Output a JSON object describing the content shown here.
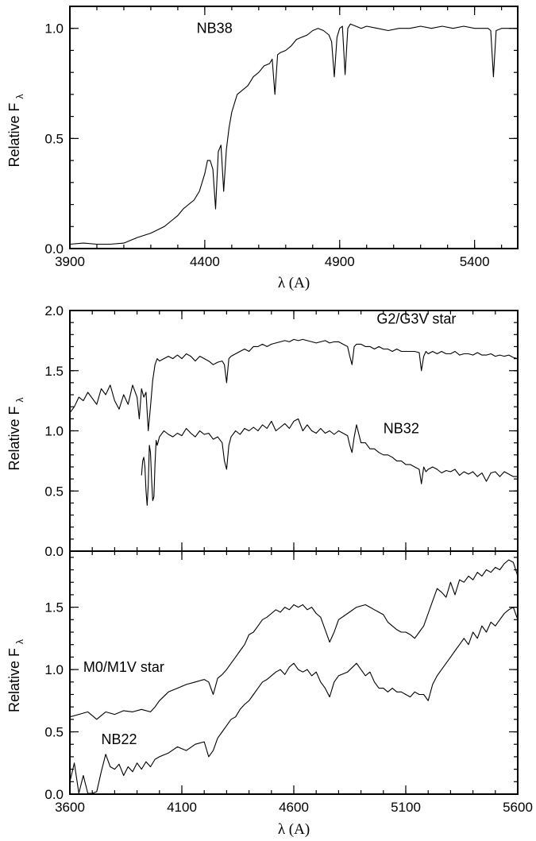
{
  "chart_data": [
    {
      "type": "line",
      "title": "",
      "xlabel": "λ (A)",
      "ylabel": "Relative F",
      "ylabel_subscript": "λ",
      "xlim": [
        3900,
        5560
      ],
      "ylim": [
        0.0,
        1.1
      ],
      "x_ticks": [
        "3900",
        "4400",
        "4900",
        "5400"
      ],
      "y_ticks": [
        "0.0",
        "0.5",
        "1.0"
      ],
      "annotations": [
        {
          "text": "NB38",
          "x": 4370,
          "y": 0.98
        }
      ],
      "series": [
        {
          "name": "NB38",
          "x": [
            3900,
            3950,
            4000,
            4050,
            4100,
            4150,
            4200,
            4250,
            4280,
            4300,
            4320,
            4340,
            4360,
            4380,
            4400,
            4410,
            4420,
            4430,
            4440,
            4450,
            4460,
            4470,
            4480,
            4490,
            4500,
            4510,
            4520,
            4540,
            4560,
            4580,
            4600,
            4620,
            4640,
            4650,
            4660,
            4670,
            4680,
            4700,
            4720,
            4740,
            4760,
            4780,
            4800,
            4820,
            4840,
            4860,
            4870,
            4880,
            4890,
            4900,
            4910,
            4920,
            4930,
            4940,
            4960,
            4980,
            5000,
            5040,
            5080,
            5120,
            5160,
            5200,
            5240,
            5280,
            5320,
            5360,
            5400,
            5430,
            5450,
            5460,
            5470,
            5480,
            5500,
            5520,
            5540,
            5560
          ],
          "values": [
            0.02,
            0.025,
            0.02,
            0.02,
            0.025,
            0.05,
            0.07,
            0.1,
            0.13,
            0.15,
            0.18,
            0.2,
            0.22,
            0.26,
            0.34,
            0.4,
            0.4,
            0.36,
            0.18,
            0.44,
            0.47,
            0.26,
            0.45,
            0.55,
            0.62,
            0.66,
            0.7,
            0.72,
            0.74,
            0.78,
            0.8,
            0.83,
            0.84,
            0.86,
            0.7,
            0.88,
            0.89,
            0.9,
            0.92,
            0.95,
            0.96,
            0.97,
            0.99,
            1.0,
            0.99,
            0.97,
            0.94,
            0.78,
            0.96,
            1.0,
            1.01,
            0.79,
            1.0,
            1.02,
            1.01,
            1.0,
            1.01,
            1.0,
            0.99,
            1.0,
            1.0,
            1.01,
            1.0,
            1.01,
            1.0,
            1.01,
            1.0,
            1.0,
            1.0,
            0.99,
            0.78,
            0.99,
            1.0,
            1.0,
            1.0,
            1.0
          ]
        }
      ]
    },
    {
      "type": "line",
      "title": "",
      "xlabel": "",
      "ylabel": "Relative F",
      "ylabel_subscript": "λ",
      "xlim": [
        3600,
        5600
      ],
      "ylim": [
        0.0,
        2.0
      ],
      "x_ticks": [],
      "y_ticks": [
        "0.0",
        "0.5",
        "1.0",
        "1.5",
        "2.0"
      ],
      "annotations": [
        {
          "text": "G2/G3V star",
          "x": 4970,
          "y": 1.89
        },
        {
          "text": "NB32",
          "x": 5000,
          "y": 0.98
        }
      ],
      "series": [
        {
          "name": "G2/G3V star",
          "x": [
            3600,
            3620,
            3640,
            3660,
            3680,
            3700,
            3720,
            3740,
            3760,
            3780,
            3800,
            3820,
            3840,
            3860,
            3880,
            3900,
            3910,
            3920,
            3930,
            3940,
            3950,
            3960,
            3970,
            3980,
            3990,
            4000,
            4020,
            4040,
            4060,
            4080,
            4100,
            4120,
            4140,
            4160,
            4180,
            4200,
            4220,
            4240,
            4260,
            4280,
            4290,
            4300,
            4310,
            4320,
            4340,
            4360,
            4380,
            4400,
            4420,
            4440,
            4460,
            4480,
            4500,
            4520,
            4540,
            4560,
            4580,
            4600,
            4620,
            4640,
            4660,
            4680,
            4700,
            4720,
            4740,
            4760,
            4780,
            4800,
            4820,
            4840,
            4850,
            4860,
            4870,
            4880,
            4900,
            4920,
            4940,
            4960,
            4980,
            5000,
            5020,
            5040,
            5060,
            5080,
            5100,
            5120,
            5140,
            5160,
            5170,
            5180,
            5190,
            5200,
            5220,
            5240,
            5260,
            5280,
            5300,
            5320,
            5340,
            5360,
            5380,
            5400,
            5420,
            5440,
            5460,
            5480,
            5500,
            5520,
            5540,
            5560,
            5580,
            5600
          ],
          "values": [
            1.15,
            1.2,
            1.28,
            1.25,
            1.32,
            1.27,
            1.22,
            1.35,
            1.3,
            1.38,
            1.25,
            1.18,
            1.3,
            1.22,
            1.38,
            1.28,
            1.1,
            1.35,
            1.28,
            1.32,
            1.0,
            1.2,
            1.42,
            1.55,
            1.6,
            1.58,
            1.6,
            1.62,
            1.6,
            1.63,
            1.6,
            1.64,
            1.62,
            1.58,
            1.62,
            1.6,
            1.58,
            1.55,
            1.57,
            1.58,
            1.55,
            1.4,
            1.6,
            1.62,
            1.64,
            1.66,
            1.68,
            1.66,
            1.7,
            1.7,
            1.72,
            1.7,
            1.72,
            1.73,
            1.74,
            1.75,
            1.74,
            1.76,
            1.75,
            1.76,
            1.75,
            1.74,
            1.73,
            1.74,
            1.75,
            1.73,
            1.74,
            1.74,
            1.72,
            1.7,
            1.62,
            1.55,
            1.7,
            1.72,
            1.72,
            1.7,
            1.7,
            1.68,
            1.7,
            1.68,
            1.68,
            1.66,
            1.68,
            1.66,
            1.66,
            1.66,
            1.66,
            1.65,
            1.5,
            1.62,
            1.66,
            1.64,
            1.66,
            1.64,
            1.66,
            1.64,
            1.64,
            1.66,
            1.63,
            1.64,
            1.64,
            1.63,
            1.65,
            1.63,
            1.63,
            1.64,
            1.62,
            1.63,
            1.62,
            1.63,
            1.61,
            1.6
          ]
        },
        {
          "name": "NB32",
          "x": [
            3920,
            3925,
            3930,
            3935,
            3940,
            3945,
            3950,
            3955,
            3960,
            3965,
            3970,
            3975,
            3980,
            3985,
            3990,
            4000,
            4020,
            4040,
            4060,
            4080,
            4100,
            4120,
            4140,
            4160,
            4180,
            4200,
            4220,
            4240,
            4260,
            4280,
            4290,
            4300,
            4310,
            4320,
            4340,
            4360,
            4380,
            4400,
            4420,
            4440,
            4460,
            4480,
            4500,
            4520,
            4540,
            4560,
            4580,
            4600,
            4620,
            4640,
            4660,
            4680,
            4700,
            4720,
            4740,
            4760,
            4780,
            4800,
            4820,
            4840,
            4850,
            4860,
            4870,
            4880,
            4900,
            4920,
            4940,
            4960,
            4980,
            5000,
            5020,
            5040,
            5060,
            5080,
            5100,
            5120,
            5140,
            5160,
            5170,
            5180,
            5190,
            5200,
            5220,
            5240,
            5260,
            5280,
            5300,
            5320,
            5340,
            5360,
            5380,
            5400,
            5420,
            5440,
            5460,
            5480,
            5500,
            5520,
            5540,
            5560,
            5580,
            5600
          ],
          "values": [
            0.63,
            0.75,
            0.78,
            0.7,
            0.5,
            0.38,
            0.55,
            0.88,
            0.82,
            0.6,
            0.42,
            0.45,
            0.72,
            0.92,
            0.88,
            0.95,
            1.0,
            0.97,
            0.95,
            0.98,
            0.96,
            1.02,
            0.98,
            0.95,
            1.0,
            0.97,
            0.98,
            0.93,
            0.95,
            0.9,
            0.75,
            0.68,
            0.88,
            0.95,
            1.0,
            0.97,
            1.02,
            1.0,
            1.03,
            1.0,
            1.05,
            1.02,
            1.08,
            1.0,
            1.03,
            1.06,
            1.02,
            1.08,
            1.1,
            1.0,
            1.05,
            1.0,
            0.98,
            1.02,
            0.98,
            1.0,
            0.97,
            1.0,
            0.98,
            0.96,
            0.88,
            0.82,
            0.95,
            1.05,
            0.9,
            0.9,
            0.85,
            0.85,
            0.82,
            0.8,
            0.8,
            0.78,
            0.75,
            0.75,
            0.72,
            0.72,
            0.7,
            0.68,
            0.56,
            0.7,
            0.66,
            0.68,
            0.7,
            0.68,
            0.65,
            0.67,
            0.66,
            0.68,
            0.63,
            0.66,
            0.64,
            0.66,
            0.62,
            0.65,
            0.58,
            0.65,
            0.66,
            0.62,
            0.66,
            0.64,
            0.62,
            0.62
          ]
        }
      ]
    },
    {
      "type": "line",
      "title": "",
      "xlabel": "λ (A)",
      "ylabel": "Relative F",
      "ylabel_subscript": "λ",
      "xlim": [
        3600,
        5600
      ],
      "ylim": [
        0.0,
        1.95
      ],
      "x_ticks": [
        "3600",
        "4100",
        "4600",
        "5100",
        "5600"
      ],
      "y_ticks": [
        "0.0",
        "0.5",
        "1.0",
        "1.5"
      ],
      "annotations": [
        {
          "text": "M0/M1V star",
          "x": 3660,
          "y": 0.98
        },
        {
          "text": "NB22",
          "x": 3740,
          "y": 0.4
        }
      ],
      "series": [
        {
          "name": "M0/M1V star",
          "x": [
            3600,
            3640,
            3680,
            3700,
            3720,
            3760,
            3800,
            3840,
            3880,
            3920,
            3960,
            3980,
            4000,
            4040,
            4080,
            4120,
            4160,
            4200,
            4220,
            4240,
            4260,
            4280,
            4300,
            4320,
            4340,
            4360,
            4380,
            4400,
            4420,
            4440,
            4460,
            4480,
            4500,
            4520,
            4540,
            4560,
            4580,
            4600,
            4620,
            4640,
            4660,
            4680,
            4700,
            4720,
            4740,
            4760,
            4780,
            4800,
            4840,
            4880,
            4920,
            4940,
            4960,
            4980,
            5000,
            5020,
            5040,
            5060,
            5080,
            5100,
            5120,
            5140,
            5160,
            5180,
            5200,
            5220,
            5240,
            5260,
            5280,
            5300,
            5320,
            5340,
            5360,
            5380,
            5400,
            5420,
            5440,
            5460,
            5480,
            5500,
            5520,
            5540,
            5560,
            5580,
            5600
          ],
          "values": [
            0.62,
            0.64,
            0.66,
            0.63,
            0.6,
            0.66,
            0.64,
            0.67,
            0.66,
            0.68,
            0.66,
            0.7,
            0.75,
            0.82,
            0.85,
            0.88,
            0.9,
            0.92,
            0.9,
            0.8,
            0.93,
            0.96,
            1.0,
            1.05,
            1.1,
            1.15,
            1.2,
            1.28,
            1.3,
            1.35,
            1.4,
            1.42,
            1.45,
            1.48,
            1.46,
            1.5,
            1.48,
            1.52,
            1.5,
            1.52,
            1.48,
            1.5,
            1.45,
            1.42,
            1.32,
            1.22,
            1.3,
            1.4,
            1.45,
            1.5,
            1.52,
            1.5,
            1.48,
            1.46,
            1.44,
            1.38,
            1.35,
            1.32,
            1.3,
            1.3,
            1.28,
            1.25,
            1.3,
            1.35,
            1.45,
            1.55,
            1.65,
            1.62,
            1.58,
            1.7,
            1.6,
            1.72,
            1.7,
            1.75,
            1.72,
            1.78,
            1.75,
            1.8,
            1.78,
            1.82,
            1.8,
            1.85,
            1.88,
            1.86,
            1.75
          ]
        },
        {
          "name": "NB22",
          "x": [
            3600,
            3620,
            3640,
            3660,
            3680,
            3700,
            3720,
            3740,
            3760,
            3780,
            3800,
            3820,
            3840,
            3860,
            3880,
            3900,
            3920,
            3940,
            3960,
            3980,
            4000,
            4040,
            4080,
            4120,
            4160,
            4200,
            4220,
            4240,
            4260,
            4280,
            4300,
            4320,
            4340,
            4360,
            4380,
            4400,
            4420,
            4440,
            4460,
            4480,
            4500,
            4520,
            4540,
            4560,
            4580,
            4600,
            4620,
            4640,
            4660,
            4680,
            4700,
            4720,
            4740,
            4760,
            4780,
            4800,
            4840,
            4880,
            4920,
            4940,
            4960,
            4980,
            5000,
            5020,
            5040,
            5060,
            5080,
            5100,
            5120,
            5140,
            5160,
            5180,
            5200,
            5220,
            5240,
            5260,
            5280,
            5300,
            5320,
            5340,
            5360,
            5380,
            5400,
            5420,
            5440,
            5460,
            5480,
            5500,
            5520,
            5540,
            5560,
            5580,
            5600
          ],
          "values": [
            0.1,
            0.25,
            -0.05,
            0.15,
            0.0,
            -0.05,
            0.02,
            0.18,
            0.32,
            0.22,
            0.2,
            0.24,
            0.15,
            0.22,
            0.18,
            0.25,
            0.2,
            0.26,
            0.22,
            0.28,
            0.3,
            0.33,
            0.38,
            0.35,
            0.4,
            0.42,
            0.3,
            0.35,
            0.45,
            0.5,
            0.55,
            0.6,
            0.62,
            0.68,
            0.72,
            0.75,
            0.8,
            0.85,
            0.9,
            0.92,
            0.95,
            0.98,
            1.0,
            0.96,
            1.02,
            1.05,
            1.0,
            0.98,
            1.0,
            0.95,
            0.98,
            0.9,
            0.85,
            0.78,
            0.9,
            0.95,
            0.98,
            1.05,
            0.95,
            0.98,
            0.9,
            0.85,
            0.85,
            0.82,
            0.85,
            0.82,
            0.82,
            0.8,
            0.78,
            0.82,
            0.8,
            0.8,
            0.75,
            0.88,
            0.95,
            1.0,
            1.05,
            1.1,
            1.15,
            1.2,
            1.25,
            1.2,
            1.3,
            1.25,
            1.35,
            1.3,
            1.38,
            1.35,
            1.4,
            1.45,
            1.48,
            1.5,
            1.4
          ]
        }
      ]
    }
  ]
}
